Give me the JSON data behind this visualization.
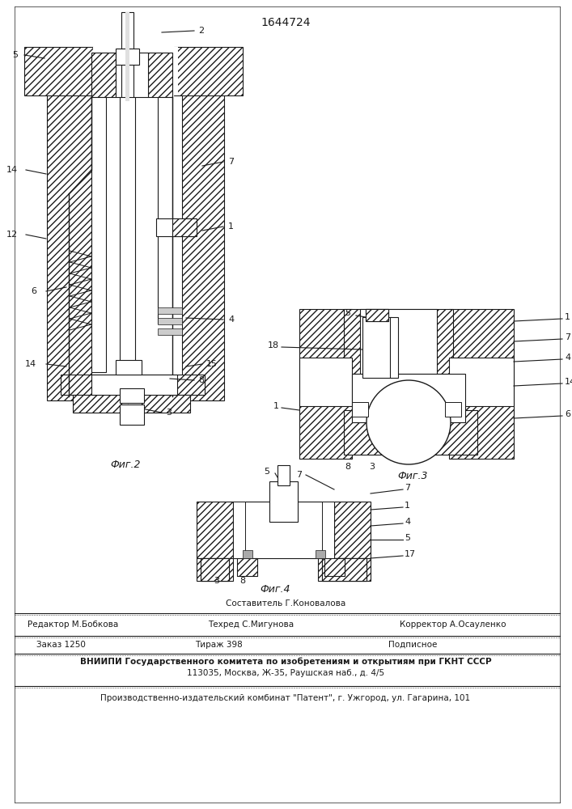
{
  "title_number": "1644724",
  "fig2_label": "Фиг.2",
  "fig3_label": "Фиг.3",
  "fig4_label": "Фиг.4",
  "editor_line": "Редактор М.Бобкова",
  "composer_line": "Составитель Г.Коновалова",
  "tech_line": "Техред С.Мигунова",
  "corrector_line": "Корректор А.Осауленко",
  "order_line": "Заказ 1250",
  "tirazh_line": "Тираж 398",
  "podpisnoe_line": "Подписное",
  "vniip_line": "ВНИИПИ Государственного комитета по изобретениям и открытиям при ГКНТ СССР",
  "address_line": "113035, Москва, Ж-35, Раушская наб., д. 4/5",
  "publisher_line": "Производственно-издательский комбинат \"Патент\", г. Ужгород, ул. Гагарина, 101",
  "bg_color": "#ffffff",
  "line_color": "#1a1a1a",
  "fig_width": 7.07,
  "fig_height": 10.0,
  "dpi": 100
}
